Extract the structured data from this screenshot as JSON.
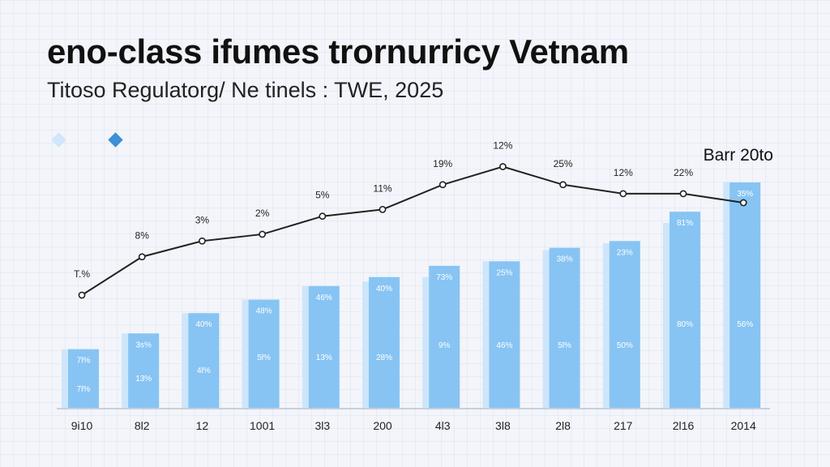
{
  "title": "eno-class ifumes trornurricy Vetnam",
  "subtitle": "Titoso  Regulatorg/ Ne tinels :  TWE, 2025",
  "legend": {
    "label": "Barr 20to"
  },
  "colors": {
    "bar_front": "#87c4f3",
    "bar_back": "#cde6fb",
    "line": "#222222",
    "axis": "#b8c4d4"
  },
  "chart_data": {
    "type": "bar",
    "categories": [
      "9i10",
      "8l2",
      "12",
      "1001",
      "3l3",
      "200",
      "4l3",
      "3l8",
      "2l8",
      "217",
      "2l16",
      "2014"
    ],
    "ylim": [
      0,
      100
    ],
    "series": [
      {
        "type": "bar-back",
        "values": [
          26,
          33,
          42,
          48,
          54,
          56,
          58,
          65,
          70,
          73,
          82,
          100
        ]
      },
      {
        "type": "bar",
        "values": [
          26,
          33,
          42,
          48,
          54,
          58,
          63,
          65,
          71,
          74,
          87,
          100
        ]
      },
      {
        "type": "line",
        "values": [
          50,
          67,
          74,
          77,
          85,
          88,
          99,
          107,
          99,
          95,
          95,
          91
        ]
      }
    ],
    "bar_labels_top": [
      "7l%",
      "3s%",
      "40%",
      "48%",
      "46%",
      "40%",
      "73%",
      "25%",
      "38%",
      "23%",
      "81%",
      "35%"
    ],
    "bar_labels_bottom": [
      "7l%",
      "13%",
      "4l%",
      "5l%",
      "13%",
      "28%",
      "9%",
      "46%",
      "5l%",
      "50%",
      "80%",
      "56%"
    ],
    "line_labels": [
      "T.%",
      "8%",
      "3%",
      "2%",
      "5%",
      "11%",
      "19%",
      "12%",
      "25%",
      "12%",
      "22%",
      ""
    ]
  }
}
